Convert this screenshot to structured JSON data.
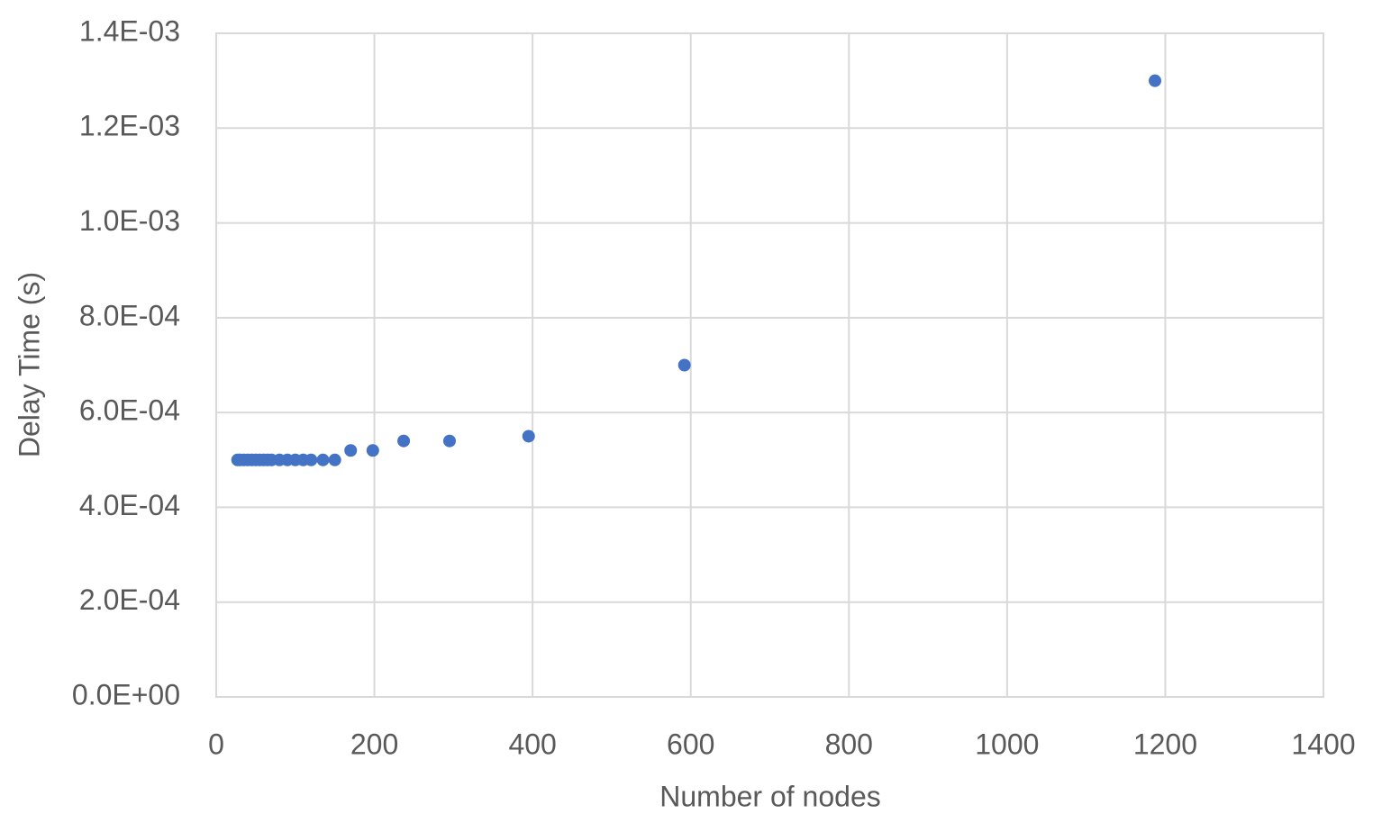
{
  "chart_data": {
    "type": "scatter",
    "x_label": "Number of nodes",
    "y_label": "Delay Time (s)",
    "series": [
      {
        "color": "#4472c4",
        "x": [
          27,
          30,
          35,
          40,
          45,
          50,
          55,
          60,
          65,
          70,
          80,
          90,
          100,
          110,
          120,
          135,
          150,
          170,
          198,
          237,
          295,
          395,
          592,
          1187
        ],
        "values": [
          0.0005,
          0.0005,
          0.0005,
          0.0005,
          0.0005,
          0.0005,
          0.0005,
          0.0005,
          0.0005,
          0.0005,
          0.0005,
          0.0005,
          0.0005,
          0.0005,
          0.0005,
          0.0005,
          0.0005,
          0.00052,
          0.00052,
          0.00054,
          0.00054,
          0.00055,
          0.0007,
          0.0013
        ]
      }
    ],
    "xlim": [
      0,
      1400
    ],
    "xticks": [
      0,
      200,
      400,
      600,
      800,
      1000,
      1200,
      1400
    ],
    "ylim": [
      0,
      0.0014
    ],
    "yticks": [
      {
        "value": 0,
        "label": "0.0E+00"
      },
      {
        "value": 0.0002,
        "label": "2.0E-04"
      },
      {
        "value": 0.0004,
        "label": "4.0E-04"
      },
      {
        "value": 0.0006,
        "label": "6.0E-04"
      },
      {
        "value": 0.0008,
        "label": "8.0E-04"
      },
      {
        "value": 0.001,
        "label": "1.0E-03"
      },
      {
        "value": 0.0012,
        "label": "1.2E-03"
      },
      {
        "value": 0.0014,
        "label": "1.4E-03"
      }
    ],
    "grid": true
  }
}
